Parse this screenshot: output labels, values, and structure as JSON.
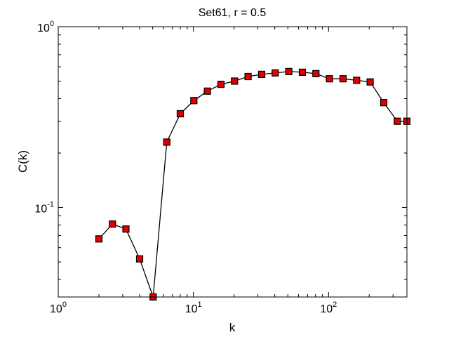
{
  "chart_data": {
    "type": "line",
    "title": "Set61, r = 0.5",
    "xlabel": "k",
    "ylabel": "C(k)",
    "xscale": "log",
    "yscale": "log",
    "xlim": [
      1,
      380
    ],
    "ylim": [
      0.032,
      1
    ],
    "grid": false,
    "x_ticks": [
      {
        "value": 1,
        "base": "10",
        "exp": "0"
      },
      {
        "value": 10,
        "base": "10",
        "exp": "1"
      },
      {
        "value": 100,
        "base": "10",
        "exp": "2"
      }
    ],
    "y_ticks": [
      {
        "value": 0.1,
        "base": "10",
        "exp": "-1"
      },
      {
        "value": 1,
        "base": "10",
        "exp": "0"
      }
    ],
    "marker_color": "#dd0000",
    "line_color": "#000000",
    "series": [
      {
        "x": [
          2,
          2.52,
          3.17,
          4,
          5.04,
          6.35,
          8,
          10.08,
          12.7,
          16,
          20.16,
          25.4,
          32,
          40.32,
          50.8,
          64,
          80.63,
          101.6,
          128,
          161.3,
          203.2,
          256,
          322.5,
          380
        ],
        "y": [
          0.067,
          0.081,
          0.076,
          0.052,
          0.032,
          0.23,
          0.33,
          0.39,
          0.44,
          0.48,
          0.5,
          0.53,
          0.545,
          0.555,
          0.565,
          0.56,
          0.55,
          0.515,
          0.515,
          0.505,
          0.495,
          0.38,
          0.3,
          0.3
        ]
      }
    ]
  }
}
